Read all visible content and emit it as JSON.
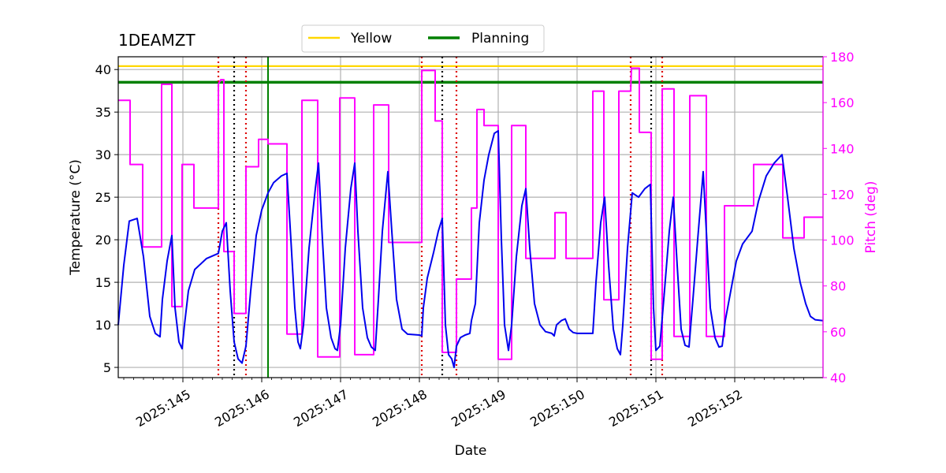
{
  "chart_data": {
    "type": "line",
    "title": "1DEAMZT",
    "xlabel": "Date",
    "ylabel_left": "Temperature ($^\\circ$C)",
    "ylabel_left_display": "Temperature (°C)",
    "ylabel_right": "Pitch (deg)",
    "xlim": [
      144.18,
      153.12
    ],
    "ylim_left": [
      3.8,
      41.5
    ],
    "ylim_right": [
      40,
      180
    ],
    "x_ticks": [
      {
        "value": 145,
        "label": "2025:145"
      },
      {
        "value": 146,
        "label": "2025:146"
      },
      {
        "value": 147,
        "label": "2025:147"
      },
      {
        "value": 148,
        "label": "2025:148"
      },
      {
        "value": 149,
        "label": "2025:149"
      },
      {
        "value": 150,
        "label": "2025:150"
      },
      {
        "value": 151,
        "label": "2025:151"
      },
      {
        "value": 152,
        "label": "2025:152"
      }
    ],
    "y_ticks_left": [
      5,
      10,
      15,
      20,
      25,
      30,
      35,
      40
    ],
    "y_ticks_right": [
      40,
      60,
      80,
      100,
      120,
      140,
      160,
      180
    ],
    "grid": true,
    "colors": {
      "temperature": "#0000ee",
      "pitch": "#ff00ff",
      "yellow": "#ffd700",
      "planning": "#008000",
      "red_vline": "#dd0000",
      "black_vline": "#000000",
      "grid": "#b0b0b0",
      "right_axis": "#ff00ff"
    },
    "limits": [
      {
        "name": "Yellow",
        "value": 40.4
      },
      {
        "name": "Planning",
        "value": 38.5
      }
    ],
    "legend": {
      "placement": "top-center",
      "entries": [
        {
          "label": "Yellow",
          "color": "#ffd700"
        },
        {
          "label": "Planning",
          "color": "#008000"
        }
      ]
    },
    "vlines_green": [
      146.08
    ],
    "vlines_red_dotted": [
      145.45,
      145.8,
      148.03,
      148.47,
      150.68,
      151.08
    ],
    "vlines_black_dotted": [
      145.65,
      148.29,
      150.94
    ],
    "series_temperature": {
      "name": "1DEAMZT",
      "points": [
        [
          144.18,
          10.0
        ],
        [
          144.25,
          17.0
        ],
        [
          144.32,
          22.2
        ],
        [
          144.42,
          22.5
        ],
        [
          144.5,
          18.0
        ],
        [
          144.58,
          11.0
        ],
        [
          144.65,
          9.0
        ],
        [
          144.71,
          8.6
        ],
        [
          144.74,
          13.0
        ],
        [
          144.8,
          17.5
        ],
        [
          144.86,
          20.5
        ],
        [
          144.9,
          12.0
        ],
        [
          144.95,
          8.0
        ],
        [
          144.99,
          7.2
        ],
        [
          145.02,
          10.0
        ],
        [
          145.07,
          14.0
        ],
        [
          145.15,
          16.5
        ],
        [
          145.3,
          17.8
        ],
        [
          145.45,
          18.4
        ],
        [
          145.5,
          21.0
        ],
        [
          145.55,
          22.0
        ],
        [
          145.6,
          14.0
        ],
        [
          145.65,
          8.0
        ],
        [
          145.7,
          6.0
        ],
        [
          145.75,
          5.5
        ],
        [
          145.8,
          7.5
        ],
        [
          145.86,
          14.0
        ],
        [
          145.93,
          20.5
        ],
        [
          146.0,
          23.5
        ],
        [
          146.08,
          25.5
        ],
        [
          146.15,
          26.7
        ],
        [
          146.25,
          27.5
        ],
        [
          146.32,
          27.8
        ],
        [
          146.37,
          20.0
        ],
        [
          146.42,
          12.0
        ],
        [
          146.46,
          8.0
        ],
        [
          146.49,
          7.2
        ],
        [
          146.53,
          10.0
        ],
        [
          146.6,
          19.0
        ],
        [
          146.68,
          26.0
        ],
        [
          146.72,
          29.0
        ],
        [
          146.77,
          20.0
        ],
        [
          146.82,
          12.0
        ],
        [
          146.88,
          8.5
        ],
        [
          146.93,
          7.2
        ],
        [
          146.96,
          7.0
        ],
        [
          147.0,
          10.0
        ],
        [
          147.06,
          19.0
        ],
        [
          147.13,
          26.0
        ],
        [
          147.18,
          29.0
        ],
        [
          147.22,
          21.0
        ],
        [
          147.28,
          12.0
        ],
        [
          147.34,
          8.5
        ],
        [
          147.39,
          7.4
        ],
        [
          147.44,
          7.0
        ],
        [
          147.48,
          13.0
        ],
        [
          147.53,
          21.0
        ],
        [
          147.6,
          28.0
        ],
        [
          147.65,
          21.0
        ],
        [
          147.71,
          13.0
        ],
        [
          147.78,
          9.5
        ],
        [
          147.85,
          8.9
        ],
        [
          148.0,
          8.8
        ],
        [
          148.03,
          8.7
        ],
        [
          148.05,
          12.0
        ],
        [
          148.1,
          15.5
        ],
        [
          148.18,
          18.5
        ],
        [
          148.24,
          21.0
        ],
        [
          148.29,
          22.5
        ],
        [
          148.33,
          10.0
        ],
        [
          148.37,
          6.5
        ],
        [
          148.41,
          6.0
        ],
        [
          148.44,
          5.0
        ],
        [
          148.47,
          7.5
        ],
        [
          148.52,
          8.5
        ],
        [
          148.58,
          8.8
        ],
        [
          148.64,
          9.0
        ],
        [
          148.66,
          10.5
        ],
        [
          148.71,
          12.5
        ],
        [
          148.76,
          22.0
        ],
        [
          148.82,
          27.0
        ],
        [
          148.88,
          30.0
        ],
        [
          148.95,
          32.5
        ],
        [
          149.0,
          32.8
        ],
        [
          149.04,
          20.0
        ],
        [
          149.08,
          10.0
        ],
        [
          149.13,
          7.0
        ],
        [
          149.17,
          10.0
        ],
        [
          149.23,
          18.0
        ],
        [
          149.3,
          24.0
        ],
        [
          149.35,
          26.0
        ],
        [
          149.4,
          19.0
        ],
        [
          149.46,
          12.5
        ],
        [
          149.53,
          10.0
        ],
        [
          149.6,
          9.2
        ],
        [
          149.68,
          9.0
        ],
        [
          149.71,
          8.7
        ],
        [
          149.74,
          10.0
        ],
        [
          149.8,
          10.5
        ],
        [
          149.85,
          10.7
        ],
        [
          149.9,
          9.5
        ],
        [
          149.95,
          9.1
        ],
        [
          150.0,
          9.0
        ],
        [
          150.1,
          9.0
        ],
        [
          150.2,
          9.0
        ],
        [
          150.24,
          15.0
        ],
        [
          150.3,
          22.0
        ],
        [
          150.35,
          25.0
        ],
        [
          150.4,
          17.0
        ],
        [
          150.46,
          9.5
        ],
        [
          150.51,
          7.2
        ],
        [
          150.55,
          6.5
        ],
        [
          150.58,
          10.0
        ],
        [
          150.64,
          19.0
        ],
        [
          150.7,
          25.5
        ],
        [
          150.78,
          25.0
        ],
        [
          150.86,
          26.0
        ],
        [
          150.93,
          26.5
        ],
        [
          150.97,
          12.0
        ],
        [
          151.0,
          7.0
        ],
        [
          151.05,
          7.5
        ],
        [
          151.1,
          13.0
        ],
        [
          151.17,
          21.0
        ],
        [
          151.22,
          25.0
        ],
        [
          151.27,
          17.0
        ],
        [
          151.32,
          9.5
        ],
        [
          151.37,
          7.6
        ],
        [
          151.42,
          7.4
        ],
        [
          151.47,
          13.0
        ],
        [
          151.53,
          20.0
        ],
        [
          151.6,
          28.0
        ],
        [
          151.64,
          21.0
        ],
        [
          151.69,
          12.0
        ],
        [
          151.75,
          8.5
        ],
        [
          151.8,
          7.4
        ],
        [
          151.84,
          7.5
        ],
        [
          151.88,
          10.5
        ],
        [
          151.95,
          14.0
        ],
        [
          152.02,
          17.5
        ],
        [
          152.1,
          19.5
        ],
        [
          152.22,
          21.0
        ],
        [
          152.3,
          24.5
        ],
        [
          152.4,
          27.5
        ],
        [
          152.5,
          29.0
        ],
        [
          152.6,
          30.0
        ],
        [
          152.67,
          25.0
        ],
        [
          152.75,
          19.0
        ],
        [
          152.83,
          15.0
        ],
        [
          152.9,
          12.5
        ],
        [
          152.96,
          11.0
        ],
        [
          153.02,
          10.6
        ],
        [
          153.12,
          10.5
        ]
      ]
    },
    "series_pitch": {
      "name": "Pitch",
      "points": [
        [
          144.18,
          161
        ],
        [
          144.33,
          161
        ],
        [
          144.33,
          133
        ],
        [
          144.49,
          133
        ],
        [
          144.49,
          97
        ],
        [
          144.73,
          97
        ],
        [
          144.73,
          168
        ],
        [
          144.86,
          168
        ],
        [
          144.86,
          71
        ],
        [
          144.99,
          71
        ],
        [
          144.99,
          133
        ],
        [
          145.14,
          133
        ],
        [
          145.14,
          114
        ],
        [
          145.45,
          114
        ],
        [
          145.45,
          168
        ],
        [
          145.48,
          170
        ],
        [
          145.52,
          170
        ],
        [
          145.52,
          95
        ],
        [
          145.65,
          95
        ],
        [
          145.65,
          68
        ],
        [
          145.8,
          68
        ],
        [
          145.8,
          132
        ],
        [
          145.96,
          132
        ],
        [
          145.96,
          144
        ],
        [
          146.08,
          144
        ],
        [
          146.08,
          142
        ],
        [
          146.32,
          142
        ],
        [
          146.32,
          59
        ],
        [
          146.51,
          59
        ],
        [
          146.51,
          161
        ],
        [
          146.71,
          161
        ],
        [
          146.71,
          49
        ],
        [
          146.99,
          49
        ],
        [
          146.99,
          162
        ],
        [
          147.18,
          162
        ],
        [
          147.18,
          50
        ],
        [
          147.42,
          50
        ],
        [
          147.42,
          159
        ],
        [
          147.61,
          159
        ],
        [
          147.61,
          99
        ],
        [
          148.03,
          99
        ],
        [
          148.03,
          174
        ],
        [
          148.2,
          174
        ],
        [
          148.2,
          152
        ],
        [
          148.29,
          152
        ],
        [
          148.29,
          51
        ],
        [
          148.47,
          51
        ],
        [
          148.47,
          83
        ],
        [
          148.66,
          83
        ],
        [
          148.66,
          114
        ],
        [
          148.73,
          114
        ],
        [
          148.73,
          157
        ],
        [
          148.82,
          157
        ],
        [
          148.82,
          150
        ],
        [
          149.0,
          150
        ],
        [
          149.0,
          48
        ],
        [
          149.17,
          48
        ],
        [
          149.17,
          150
        ],
        [
          149.35,
          150
        ],
        [
          149.35,
          92
        ],
        [
          149.72,
          92
        ],
        [
          149.72,
          112
        ],
        [
          149.86,
          112
        ],
        [
          149.86,
          92
        ],
        [
          150.2,
          92
        ],
        [
          150.2,
          165
        ],
        [
          150.34,
          165
        ],
        [
          150.34,
          74
        ],
        [
          150.53,
          74
        ],
        [
          150.53,
          165
        ],
        [
          150.68,
          165
        ],
        [
          150.69,
          175
        ],
        [
          150.79,
          175
        ],
        [
          150.79,
          147
        ],
        [
          150.94,
          147
        ],
        [
          150.94,
          48
        ],
        [
          151.08,
          48
        ],
        [
          151.08,
          166
        ],
        [
          151.23,
          166
        ],
        [
          151.23,
          58
        ],
        [
          151.43,
          58
        ],
        [
          151.43,
          163
        ],
        [
          151.64,
          163
        ],
        [
          151.64,
          58
        ],
        [
          151.87,
          58
        ],
        [
          151.87,
          115
        ],
        [
          152.24,
          115
        ],
        [
          152.24,
          133
        ],
        [
          152.61,
          133
        ],
        [
          152.61,
          101
        ],
        [
          152.88,
          101
        ],
        [
          152.88,
          110
        ],
        [
          153.12,
          110
        ]
      ]
    }
  }
}
